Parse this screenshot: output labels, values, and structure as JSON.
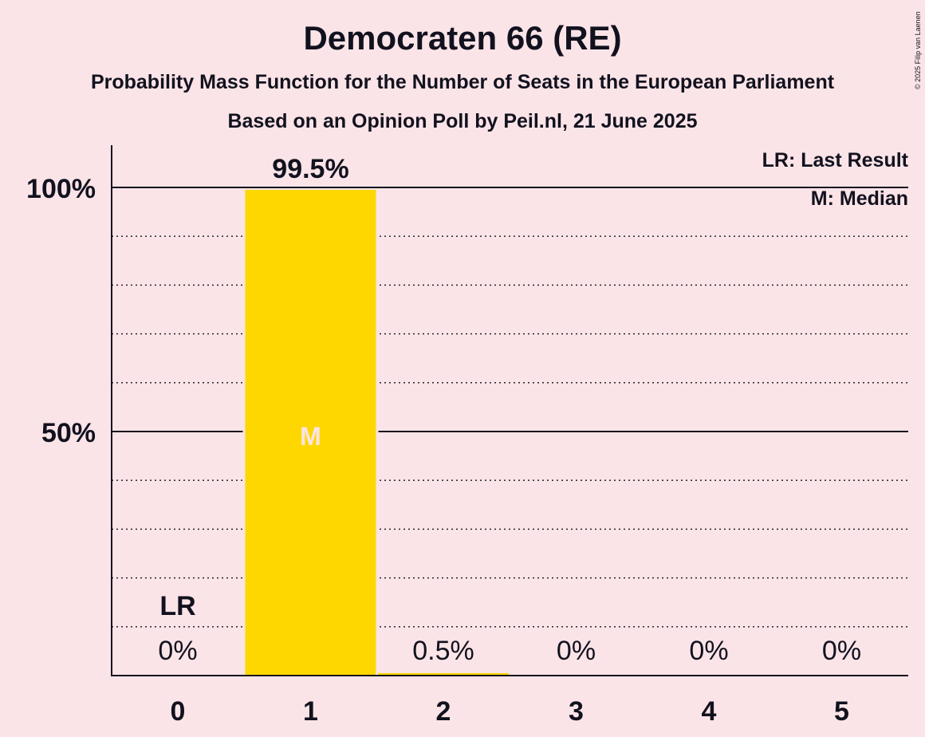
{
  "title": "Democraten 66 (RE)",
  "subtitle": "Probability Mass Function for the Number of Seats in the European Parliament",
  "subtitle2": "Based on an Opinion Poll by Peil.nl, 21 June 2025",
  "copyright": "© 2025 Filip van Laenen",
  "legend": {
    "last_result": "LR: Last Result",
    "median": "M: Median"
  },
  "colors": {
    "background": "#fbe4e7",
    "bar": "#ffd700",
    "text": "#12121f",
    "median_label": "#fbe4e7"
  },
  "chart_data": {
    "type": "bar",
    "categories": [
      "0",
      "1",
      "2",
      "3",
      "4",
      "5"
    ],
    "values": [
      0,
      99.5,
      0.5,
      0,
      0,
      0
    ],
    "value_labels": [
      "0%",
      "99.5%",
      "0.5%",
      "0%",
      "0%",
      "0%"
    ],
    "y_ticks": [
      {
        "value": 50,
        "label": "50%"
      },
      {
        "value": 100,
        "label": "100%"
      }
    ],
    "ylim": [
      0,
      100
    ],
    "minor_grid_step": 10,
    "last_result": {
      "category": "0",
      "label": "LR"
    },
    "median": {
      "category": "1",
      "label": "M"
    },
    "legend_position": "top-right"
  }
}
